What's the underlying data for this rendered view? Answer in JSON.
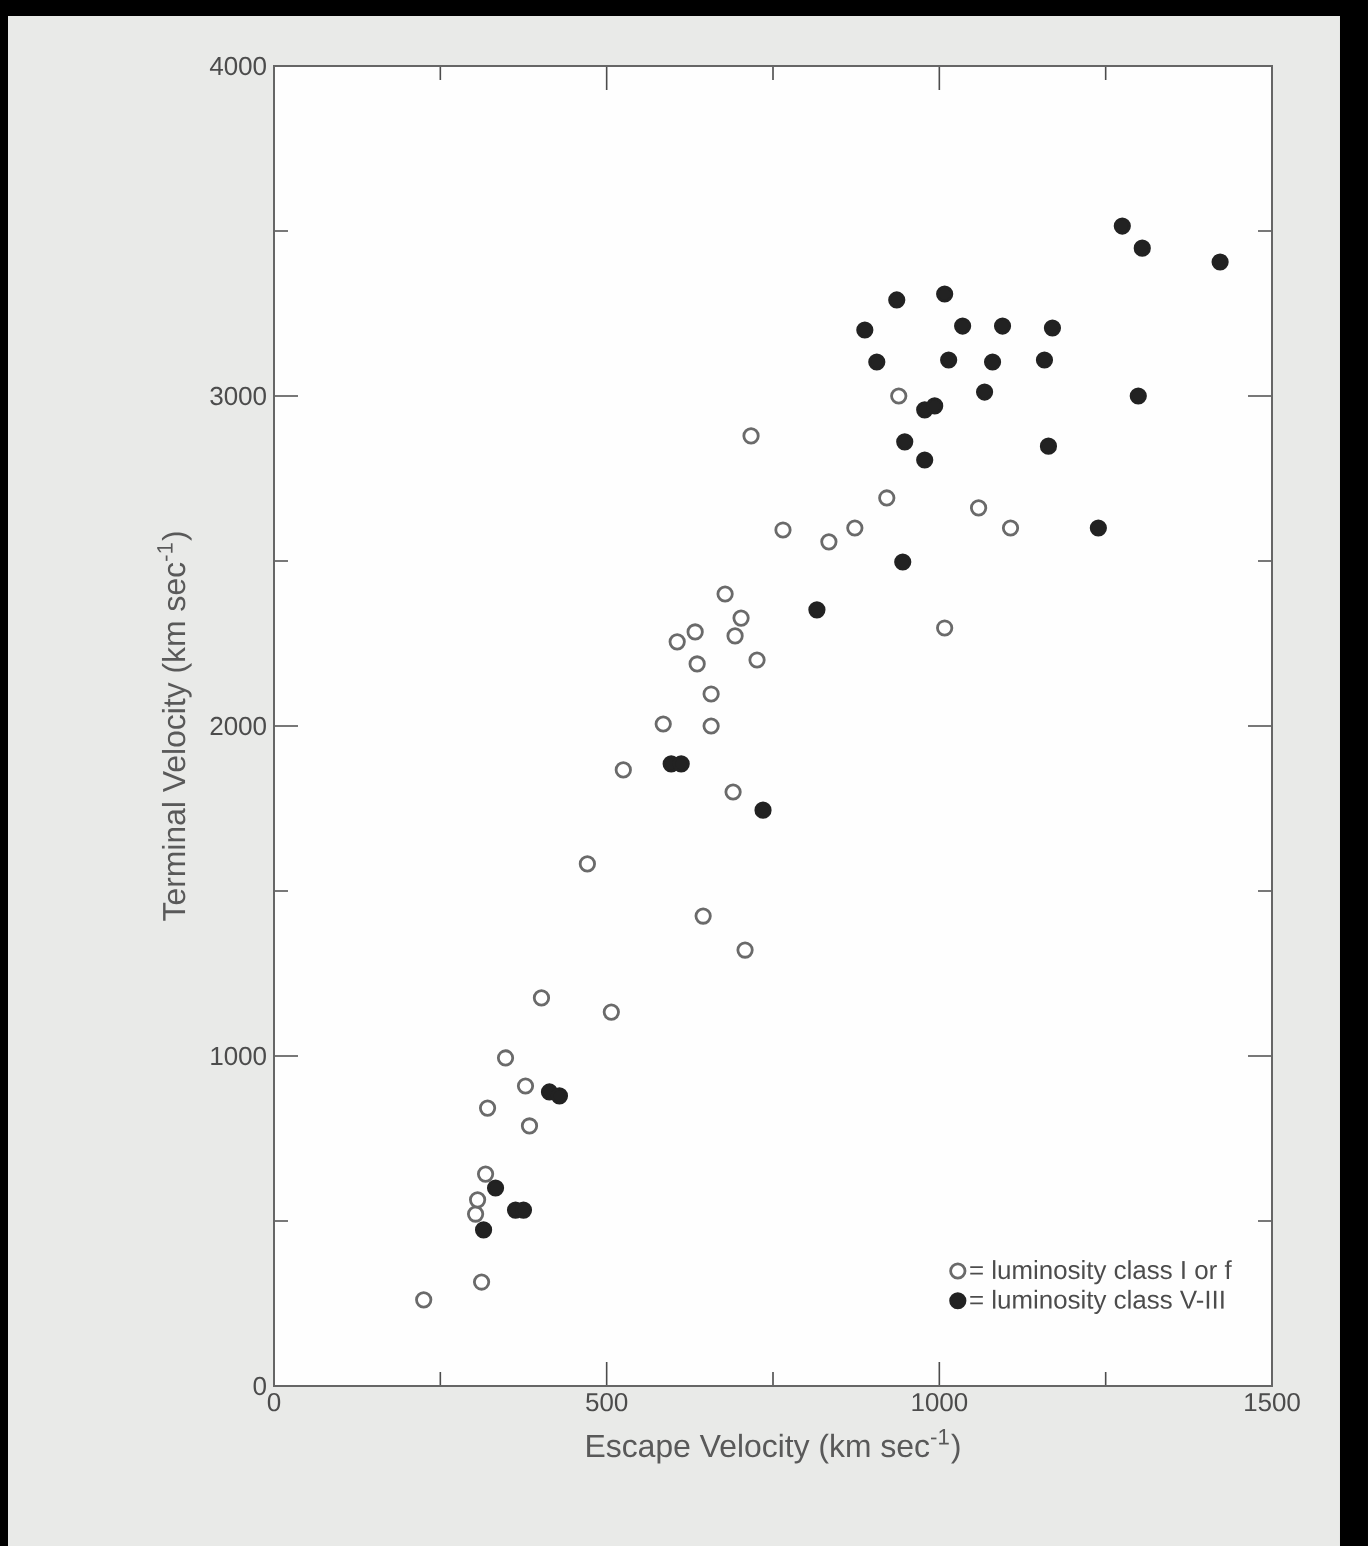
{
  "chart_data": {
    "type": "scatter",
    "xlabel": "Escape Velocity (km sec$^{-1}$)",
    "ylabel": "Terminal Velocity (km sec$^{-1}$)",
    "xlim": [
      0,
      1500
    ],
    "ylim": [
      0,
      4000
    ],
    "xticks": [
      0,
      500,
      1000,
      1500
    ],
    "yticks": [
      0,
      1000,
      2000,
      3000,
      4000
    ],
    "legend": "bottom right",
    "marker": "circle",
    "grid": false,
    "series": [
      {
        "name": "= luminosity class I or f",
        "color": "#6a6a6a",
        "x": [
          225,
          312,
          303,
          306,
          318,
          384,
          321,
          378,
          348,
          507,
          402,
          708,
          645,
          471,
          690,
          525,
          657,
          585,
          657,
          726,
          636,
          606,
          633,
          693,
          702,
          1008,
          678,
          765,
          834,
          873,
          921,
          717,
          939,
          1059,
          1107
        ],
        "values": [
          261,
          315,
          521,
          564,
          642,
          788,
          842,
          909,
          994,
          1133,
          1176,
          1321,
          1424,
          1582,
          1800,
          1867,
          2000,
          2006,
          2097,
          2200,
          2188,
          2255,
          2285,
          2273,
          2327,
          2297,
          2400,
          2594,
          2558,
          2600,
          2691,
          2879,
          3000,
          2661,
          2600
        ]
      },
      {
        "name": "= luminosity class V-III",
        "color": "#222222",
        "x": [
          315,
          333,
          363,
          375,
          414,
          429,
          597,
          612,
          735,
          816,
          945,
          948,
          978,
          978,
          993,
          1239,
          1164,
          1068,
          1299,
          906,
          1014,
          1080,
          1158,
          888,
          1035,
          1095,
          1170,
          936,
          1008,
          1275,
          1305,
          1422
        ],
        "values": [
          473,
          600,
          533,
          533,
          891,
          879,
          1885,
          1885,
          1745,
          2352,
          2497,
          2861,
          2806,
          2958,
          2970,
          2600,
          2848,
          3012,
          3000,
          3103,
          3109,
          3103,
          3109,
          3200,
          3212,
          3212,
          3206,
          3291,
          3309,
          3515,
          3448,
          3406
        ]
      }
    ]
  }
}
